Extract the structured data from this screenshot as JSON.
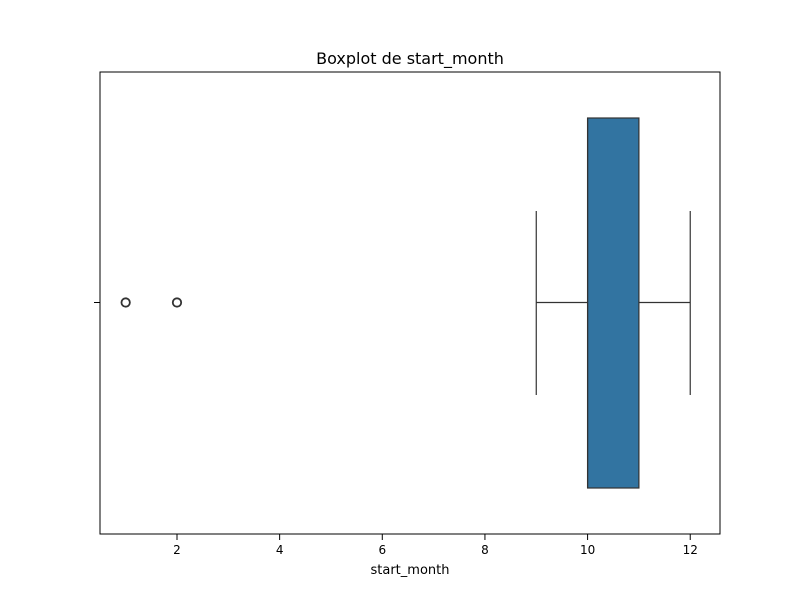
{
  "chart_data": {
    "type": "box",
    "title": "Boxplot de start_month",
    "xlabel": "start_month",
    "ylabel": "",
    "orientation": "horizontal",
    "xlim": [
      0.5,
      12.58
    ],
    "xticks": [
      2,
      4,
      6,
      8,
      10,
      12
    ],
    "grid": false,
    "legend": "none",
    "box": {
      "whisker_low": 9,
      "q1": 10,
      "median": 10,
      "q3": 11,
      "whisker_high": 12,
      "outliers": [
        1,
        2
      ]
    },
    "colors": {
      "box_fill": "#3274a1",
      "box_edge": "#333333",
      "whisker": "#333333",
      "outlier_edge": "#333333"
    }
  }
}
